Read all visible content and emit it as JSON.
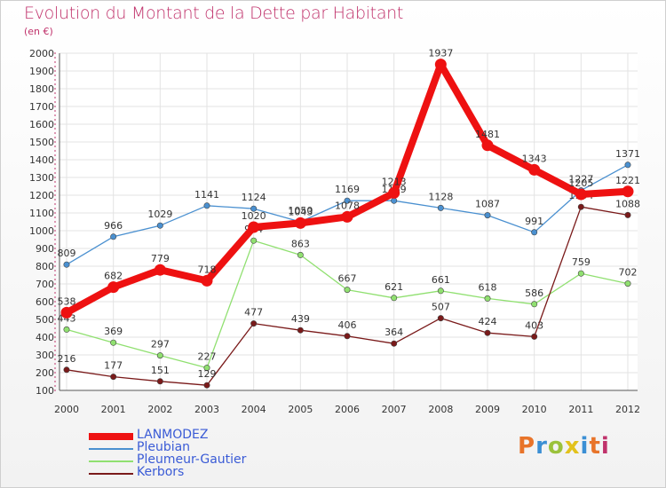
{
  "header": {
    "title": "Evolution du Montant de la Dette par Habitant",
    "subtitle": "(en €)"
  },
  "logo": {
    "text": "Proxiti",
    "colors": [
      "#e8742a",
      "#3b8fd4",
      "#9bc23c",
      "#e2c21c",
      "#3b8fd4",
      "#e8742a",
      "#c0326b"
    ]
  },
  "chart_data": {
    "type": "line",
    "title": "Evolution du Montant de la Dette par Habitant",
    "subtitle": "(en €)",
    "x": [
      "2000",
      "2001",
      "2002",
      "2003",
      "2004",
      "2005",
      "2006",
      "2007",
      "2008",
      "2009",
      "2010",
      "2011",
      "2012"
    ],
    "ylim": [
      100,
      2000
    ],
    "yticks": [
      100,
      200,
      300,
      400,
      500,
      600,
      700,
      800,
      900,
      1000,
      1100,
      1200,
      1300,
      1400,
      1500,
      1600,
      1700,
      1800,
      1900,
      2000
    ],
    "grid": true,
    "legend_position": "bottom-left",
    "series": [
      {
        "name": "LANMODEZ",
        "color": "#ee1111",
        "values": [
          538,
          682,
          779,
          718,
          1020,
          1043,
          1078,
          1213,
          1937,
          1481,
          1343,
          1205,
          1221
        ]
      },
      {
        "name": "Pleubian",
        "color": "#4a90d0",
        "values": [
          809,
          966,
          1029,
          1141,
          1124,
          1050,
          1169,
          1169,
          1128,
          1087,
          991,
          1227,
          1371
        ]
      },
      {
        "name": "Pleumeur-Gautier",
        "color": "#90e070",
        "values": [
          443,
          369,
          297,
          227,
          944,
          863,
          667,
          621,
          661,
          618,
          586,
          759,
          702
        ]
      },
      {
        "name": "Kerbors",
        "color": "#7a1a1a",
        "values": [
          216,
          177,
          151,
          129,
          477,
          439,
          406,
          364,
          507,
          424,
          403,
          1134,
          1088
        ]
      }
    ]
  }
}
